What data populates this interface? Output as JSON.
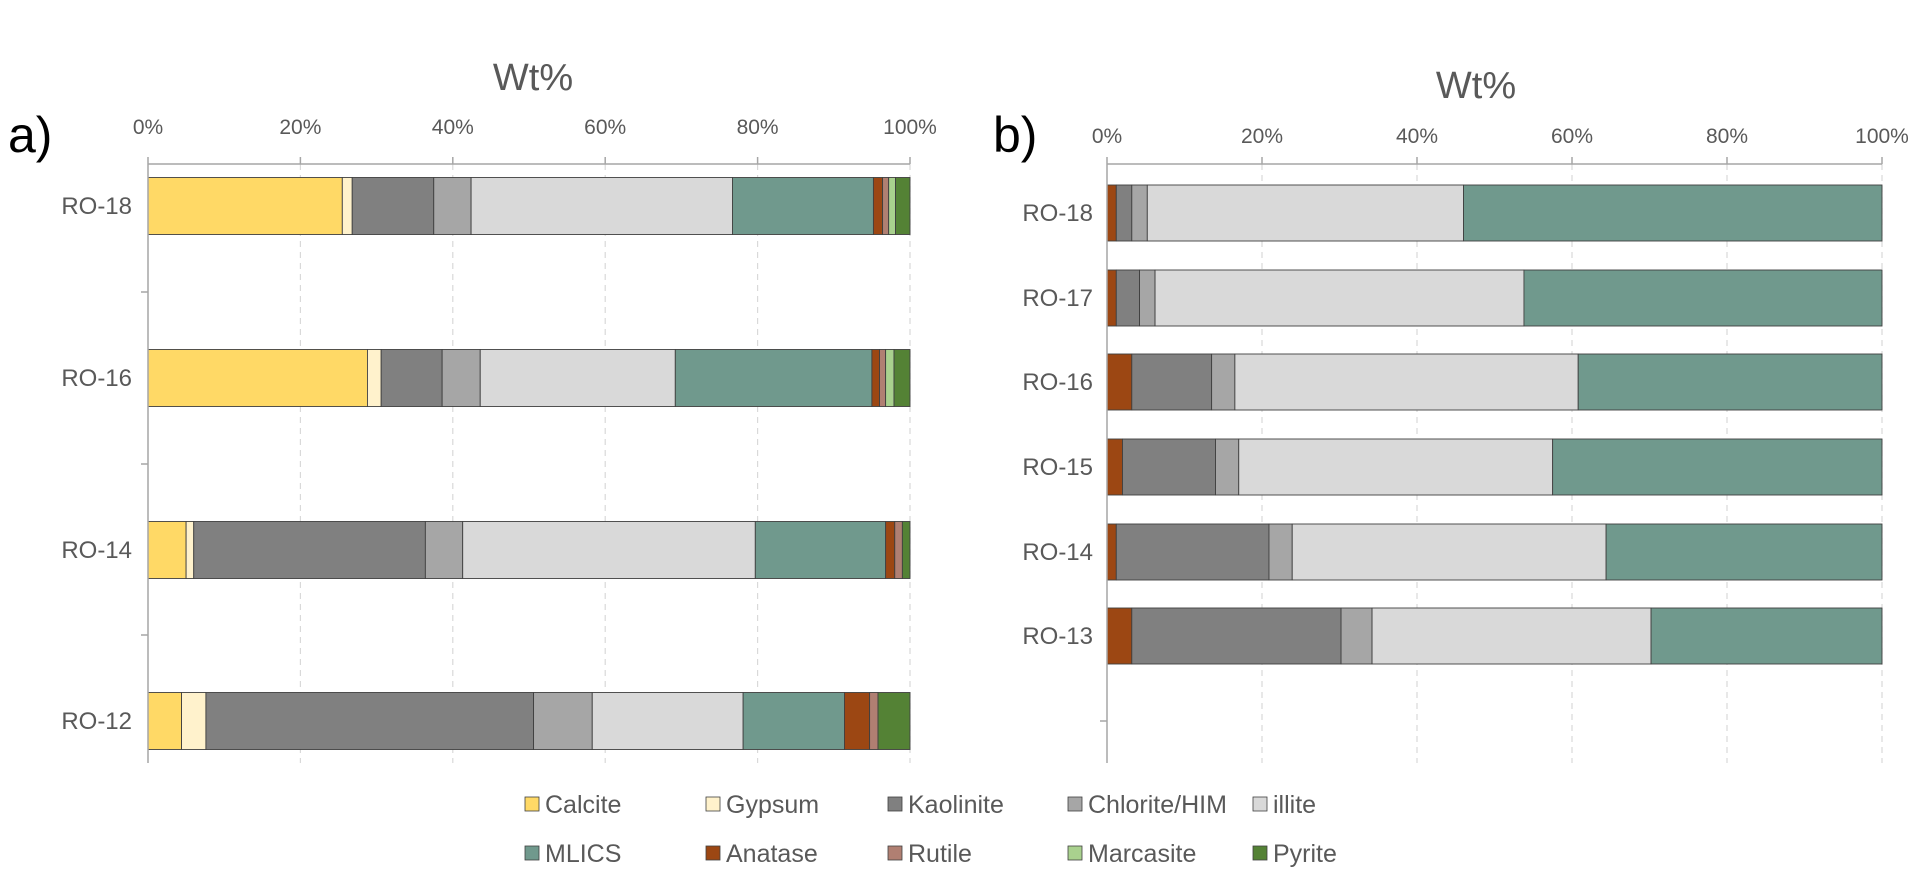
{
  "chart_data": [
    {
      "type": "bar",
      "orientation": "horizontal",
      "stacked": true,
      "panel_label": "a)",
      "title": "Wt%",
      "xlim": [
        0,
        100
      ],
      "xticks": [
        "0%",
        "20%",
        "40%",
        "60%",
        "80%",
        "100%"
      ],
      "grid": "vertical dashed",
      "categories": [
        "RO-18",
        "RO-16",
        "RO-14",
        "RO-12"
      ],
      "series": [
        {
          "name": "Calcite",
          "values": [
            25.5,
            28.8,
            5.0,
            4.4
          ]
        },
        {
          "name": "Gypsum",
          "values": [
            1.3,
            1.8,
            1.0,
            3.2
          ]
        },
        {
          "name": "Kaolinite",
          "values": [
            10.7,
            8.0,
            30.4,
            43.0
          ]
        },
        {
          "name": "Chlorite/HIM",
          "values": [
            4.9,
            5.0,
            4.9,
            7.7
          ]
        },
        {
          "name": "illite",
          "values": [
            34.3,
            25.6,
            38.4,
            19.8
          ]
        },
        {
          "name": "MLICS",
          "values": [
            18.5,
            25.8,
            17.1,
            13.3
          ]
        },
        {
          "name": "Anatase",
          "values": [
            1.2,
            1.0,
            1.2,
            3.3
          ]
        },
        {
          "name": "Rutile",
          "values": [
            0.8,
            0.8,
            1.0,
            1.1
          ]
        },
        {
          "name": "Marcasite",
          "values": [
            0.9,
            1.1,
            0.0,
            0.0
          ]
        },
        {
          "name": "Pyrite",
          "values": [
            1.9,
            2.1,
            1.0,
            4.2
          ]
        }
      ]
    },
    {
      "type": "bar",
      "orientation": "horizontal",
      "stacked": true,
      "panel_label": "b)",
      "title": "Wt%",
      "xlim": [
        0,
        100
      ],
      "xticks": [
        "0%",
        "20%",
        "40%",
        "60%",
        "80%",
        "100%"
      ],
      "grid": "vertical dashed",
      "categories": [
        "RO-18",
        "RO-17",
        "RO-16",
        "RO-15",
        "RO-14",
        "RO-13"
      ],
      "series": [
        {
          "name": "Anatase",
          "values": [
            1.2,
            1.2,
            3.2,
            2.0,
            1.2,
            3.2
          ]
        },
        {
          "name": "Kaolinite",
          "values": [
            2.0,
            3.0,
            10.3,
            12.0,
            19.7,
            27.0
          ]
        },
        {
          "name": "Chlorite/HIM",
          "values": [
            2.0,
            2.0,
            3.0,
            3.0,
            3.0,
            4.0
          ]
        },
        {
          "name": "illite",
          "values": [
            40.8,
            47.6,
            44.3,
            40.5,
            40.5,
            36.0
          ]
        },
        {
          "name": "MLICS",
          "values": [
            54.0,
            46.2,
            39.2,
            42.5,
            35.6,
            29.8
          ]
        }
      ]
    }
  ],
  "colors": {
    "Calcite": "#FFD966",
    "Gypsum": "#FFF2CC",
    "Kaolinite": "#808080",
    "Chlorite/HIM": "#A6A6A6",
    "illite": "#D9D9D9",
    "MLICS": "#70998D",
    "Anatase": "#9C4713",
    "Rutile": "#B07F72",
    "Marcasite": "#A9D18E",
    "Pyrite": "#548235"
  },
  "legend": {
    "rows": [
      [
        "Calcite",
        "Gypsum",
        "Kaolinite",
        "Chlorite/HIM",
        "illite"
      ],
      [
        "MLICS",
        "Anatase",
        "Rutile",
        "Marcasite",
        "Pyrite"
      ]
    ]
  }
}
